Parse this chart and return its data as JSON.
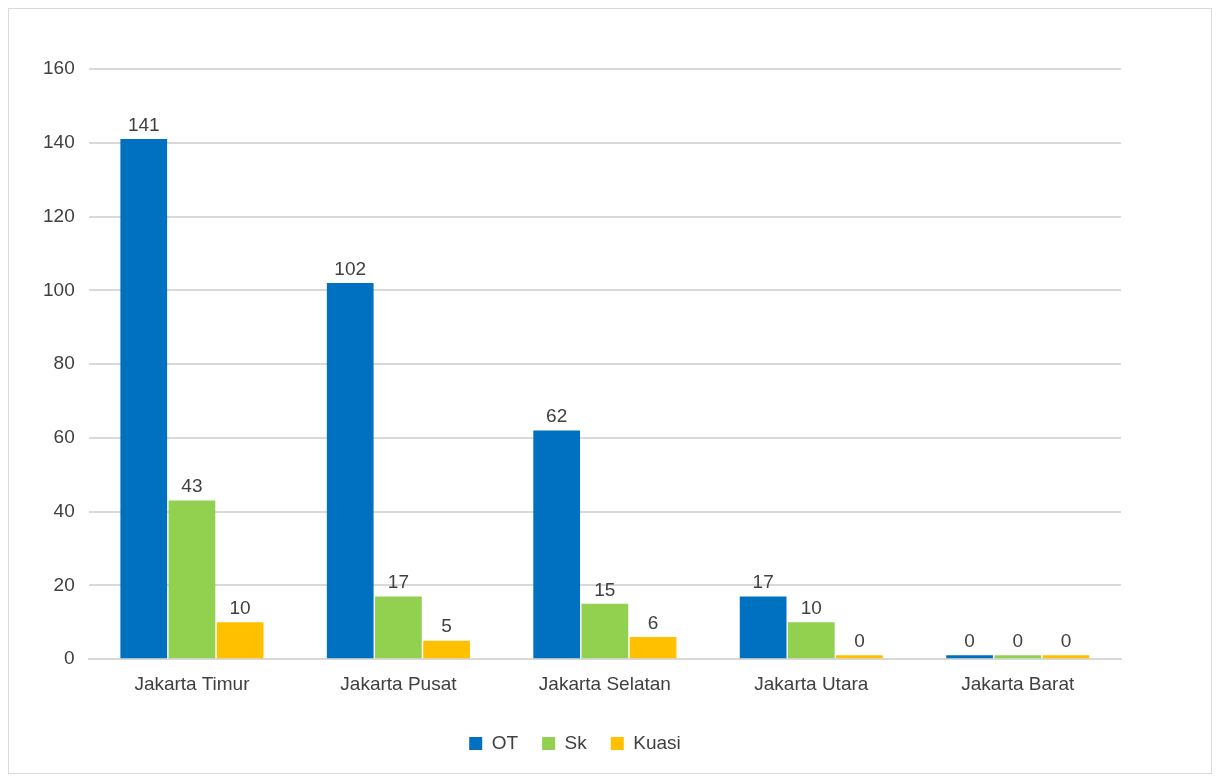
{
  "chart_data": {
    "type": "bar",
    "categories": [
      "Jakarta Timur",
      "Jakarta Pusat",
      "Jakarta Selatan",
      "Jakarta Utara",
      "Jakarta Barat"
    ],
    "series": [
      {
        "name": "OT",
        "color": "#0070c0",
        "values": [
          141,
          102,
          62,
          17,
          0
        ]
      },
      {
        "name": "Sk",
        "color": "#92d050",
        "values": [
          43,
          17,
          15,
          10,
          0
        ]
      },
      {
        "name": "Kuasi",
        "color": "#ffc000",
        "values": [
          10,
          5,
          6,
          0,
          0
        ]
      }
    ],
    "ylim": [
      0,
      160
    ],
    "yticks": [
      0,
      20,
      40,
      60,
      80,
      100,
      120,
      140,
      160
    ],
    "grid": "y",
    "legend": "bottom",
    "data_labels": true
  }
}
